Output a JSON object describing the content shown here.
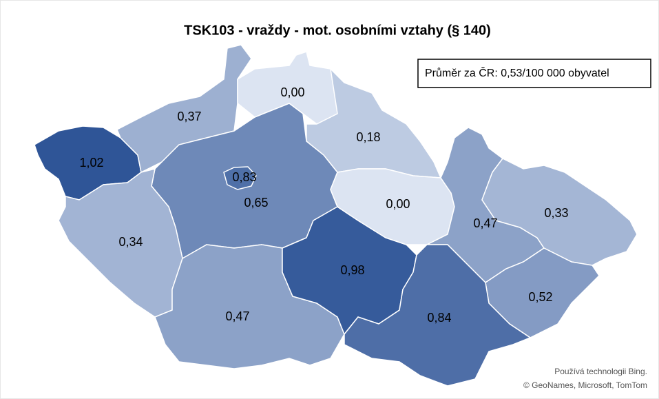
{
  "chart_data": {
    "type": "choropleth",
    "title": "TSK103 - vraždy - mot. osobními vztahy (§ 140)",
    "annotation": "Průměr za ČR: 0,53/100 000 obyvatel",
    "attribution": [
      "Používá technologii Bing.",
      "© GeoNames, Microsoft, TomTom"
    ],
    "values": [
      1.02,
      0.37,
      0.0,
      0.18,
      0.83,
      0.65,
      0.34,
      0.47,
      0.98,
      0.0,
      0.47,
      0.33,
      0.52,
      0.84
    ],
    "value_labels": [
      "1,02",
      "0,37",
      "0,00",
      "0,18",
      "0,83",
      "0,65",
      "0,34",
      "0,47",
      "0,98",
      "0,00",
      "0,47",
      "0,33",
      "0,52",
      "0,84"
    ],
    "color_scale": [
      "#dce4f2",
      "#2f5597"
    ]
  }
}
